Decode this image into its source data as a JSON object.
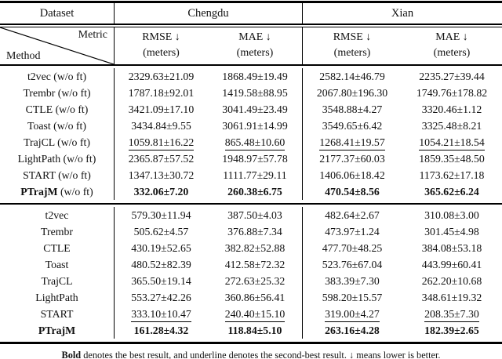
{
  "header": {
    "dataset_label": "Dataset",
    "metric_label": "Metric",
    "method_label": "Method",
    "groups": [
      "Chengdu",
      "Xian"
    ],
    "metric_cols": [
      {
        "name": "RMSE ↓",
        "unit": "(meters)"
      },
      {
        "name": "MAE ↓",
        "unit": "(meters)"
      },
      {
        "name": "RMSE ↓",
        "unit": "(meters)"
      },
      {
        "name": "MAE ↓",
        "unit": "(meters)"
      }
    ]
  },
  "blocks": [
    {
      "rows": [
        {
          "method": "t2vec",
          "suffix": " (w/o ft)",
          "method_bold": false,
          "cells": [
            {
              "v": "2329.63±21.09",
              "s": "n"
            },
            {
              "v": "1868.49±19.49",
              "s": "n"
            },
            {
              "v": "2582.14±46.79",
              "s": "n"
            },
            {
              "v": "2235.27±39.44",
              "s": "n"
            }
          ]
        },
        {
          "method": "Trembr",
          "suffix": " (w/o ft)",
          "method_bold": false,
          "cells": [
            {
              "v": "1787.18±92.01",
              "s": "n"
            },
            {
              "v": "1419.58±88.95",
              "s": "n"
            },
            {
              "v": "2067.80±196.30",
              "s": "n"
            },
            {
              "v": "1749.76±178.82",
              "s": "n"
            }
          ]
        },
        {
          "method": "CTLE",
          "suffix": " (w/o ft)",
          "method_bold": false,
          "cells": [
            {
              "v": "3421.09±17.10",
              "s": "n"
            },
            {
              "v": "3041.49±23.49",
              "s": "n"
            },
            {
              "v": "3548.88±4.27",
              "s": "n"
            },
            {
              "v": "3320.46±1.12",
              "s": "n"
            }
          ]
        },
        {
          "method": "Toast",
          "suffix": " (w/o ft)",
          "method_bold": false,
          "cells": [
            {
              "v": "3434.84±9.55",
              "s": "n"
            },
            {
              "v": "3061.91±14.99",
              "s": "n"
            },
            {
              "v": "3549.65±6.42",
              "s": "n"
            },
            {
              "v": "3325.48±8.21",
              "s": "n"
            }
          ]
        },
        {
          "method": "TrajCL",
          "suffix": " (w/o ft)",
          "method_bold": false,
          "cells": [
            {
              "v": "1059.81±16.22",
              "s": "u"
            },
            {
              "v": "865.48±10.60",
              "s": "u"
            },
            {
              "v": "1268.41±19.57",
              "s": "u"
            },
            {
              "v": "1054.21±18.54",
              "s": "u"
            }
          ]
        },
        {
          "method": "LightPath",
          "suffix": " (w/o ft)",
          "method_bold": false,
          "cells": [
            {
              "v": "2365.87±57.52",
              "s": "n"
            },
            {
              "v": "1948.97±57.78",
              "s": "n"
            },
            {
              "v": "2177.37±60.03",
              "s": "n"
            },
            {
              "v": "1859.35±48.50",
              "s": "n"
            }
          ]
        },
        {
          "method": "START",
          "suffix": " (w/o ft)",
          "method_bold": false,
          "cells": [
            {
              "v": "1347.13±30.72",
              "s": "n"
            },
            {
              "v": "1111.77±29.11",
              "s": "n"
            },
            {
              "v": "1406.06±18.42",
              "s": "n"
            },
            {
              "v": "1173.62±17.18",
              "s": "n"
            }
          ]
        },
        {
          "method": "PTrajM",
          "suffix": " (w/o ft)",
          "method_bold": true,
          "cells": [
            {
              "v": "332.06±7.20",
              "s": "b"
            },
            {
              "v": "260.38±6.75",
              "s": "b"
            },
            {
              "v": "470.54±8.56",
              "s": "b"
            },
            {
              "v": "365.62±6.24",
              "s": "b"
            }
          ]
        }
      ]
    },
    {
      "rows": [
        {
          "method": "t2vec",
          "suffix": "",
          "method_bold": false,
          "cells": [
            {
              "v": "579.30±11.94",
              "s": "n"
            },
            {
              "v": "387.50±4.03",
              "s": "n"
            },
            {
              "v": "482.64±2.67",
              "s": "n"
            },
            {
              "v": "310.08±3.00",
              "s": "n"
            }
          ]
        },
        {
          "method": "Trembr",
          "suffix": "",
          "method_bold": false,
          "cells": [
            {
              "v": "505.62±4.57",
              "s": "n"
            },
            {
              "v": "376.88±7.34",
              "s": "n"
            },
            {
              "v": "473.97±1.24",
              "s": "n"
            },
            {
              "v": "301.45±4.98",
              "s": "n"
            }
          ]
        },
        {
          "method": "CTLE",
          "suffix": "",
          "method_bold": false,
          "cells": [
            {
              "v": "430.19±52.65",
              "s": "n"
            },
            {
              "v": "382.82±52.88",
              "s": "n"
            },
            {
              "v": "477.70±48.25",
              "s": "n"
            },
            {
              "v": "384.08±53.18",
              "s": "n"
            }
          ]
        },
        {
          "method": "Toast",
          "suffix": "",
          "method_bold": false,
          "cells": [
            {
              "v": "480.52±82.39",
              "s": "n"
            },
            {
              "v": "412.58±72.32",
              "s": "n"
            },
            {
              "v": "523.76±67.04",
              "s": "n"
            },
            {
              "v": "443.99±60.41",
              "s": "n"
            }
          ]
        },
        {
          "method": "TrajCL",
          "suffix": "",
          "method_bold": false,
          "cells": [
            {
              "v": "365.50±19.14",
              "s": "n"
            },
            {
              "v": "272.63±25.32",
              "s": "n"
            },
            {
              "v": "383.39±7.30",
              "s": "n"
            },
            {
              "v": "262.20±10.68",
              "s": "n"
            }
          ]
        },
        {
          "method": "LightPath",
          "suffix": "",
          "method_bold": false,
          "cells": [
            {
              "v": "553.27±42.26",
              "s": "n"
            },
            {
              "v": "360.86±56.41",
              "s": "n"
            },
            {
              "v": "598.20±15.57",
              "s": "n"
            },
            {
              "v": "348.61±19.32",
              "s": "n"
            }
          ]
        },
        {
          "method": "START",
          "suffix": "",
          "method_bold": false,
          "cells": [
            {
              "v": "333.10±10.47",
              "s": "u"
            },
            {
              "v": "240.40±15.10",
              "s": "u"
            },
            {
              "v": "319.00±4.27",
              "s": "u"
            },
            {
              "v": "208.35±7.30",
              "s": "u"
            }
          ]
        },
        {
          "method": "PTrajM",
          "suffix": "",
          "method_bold": true,
          "cells": [
            {
              "v": "161.28±4.32",
              "s": "b"
            },
            {
              "v": "118.84±5.10",
              "s": "b"
            },
            {
              "v": "263.16±4.28",
              "s": "b"
            },
            {
              "v": "182.39±2.65",
              "s": "b"
            }
          ]
        }
      ]
    }
  ],
  "footnote": {
    "parts": [
      {
        "text": "Bold",
        "style": "bold"
      },
      {
        "text": " denotes the best result, and ",
        "style": "normal"
      },
      {
        "text": "underline",
        "style": "underline"
      },
      {
        "text": " denotes the second-best result. ↓ means lower is better.",
        "style": "normal"
      }
    ]
  }
}
